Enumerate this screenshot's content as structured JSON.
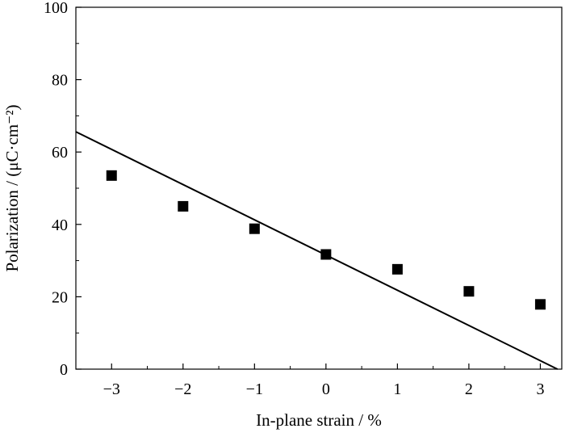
{
  "chart_data": {
    "type": "scatter",
    "xlabel": "In-plane strain / %",
    "ylabel": "Polarization / (μC·cm⁻²)",
    "xlim": [
      -3.5,
      3.3
    ],
    "ylim": [
      0,
      100
    ],
    "x_ticks": [
      "−3",
      "−2",
      "−1",
      "0",
      "1",
      "2",
      "3"
    ],
    "y_ticks": [
      "0",
      "20",
      "40",
      "60",
      "80",
      "100"
    ],
    "grid": false,
    "series": [
      {
        "kind": "points",
        "marker": "square",
        "color": "#000000",
        "x": [
          -3,
          -2,
          -1,
          0,
          1,
          2,
          3
        ],
        "y": [
          53.5,
          45,
          38.8,
          31.7,
          27.6,
          21.5,
          17.9
        ]
      },
      {
        "kind": "line",
        "color": "#000000",
        "x": [
          -3.5,
          3.24
        ],
        "y": [
          65.6,
          0
        ]
      }
    ]
  }
}
